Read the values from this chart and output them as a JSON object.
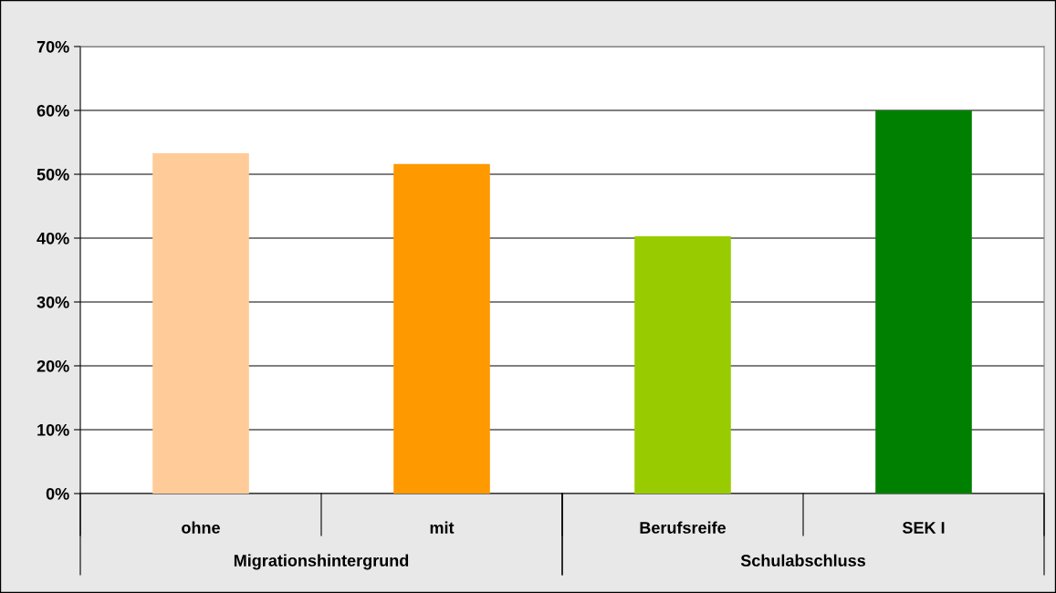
{
  "chart_data": {
    "type": "bar",
    "categories": [
      "ohne",
      "mit",
      "Berufsreife",
      "SEK I"
    ],
    "values": [
      53.3,
      51.6,
      40.3,
      60.0
    ],
    "colors": [
      "#ffcc99",
      "#ff9900",
      "#99cc00",
      "#008000"
    ],
    "ylim": [
      0,
      70
    ],
    "yticks": [
      {
        "value": 0,
        "label": "0%"
      },
      {
        "value": 10,
        "label": "10%"
      },
      {
        "value": 20,
        "label": "20%"
      },
      {
        "value": 30,
        "label": "30%"
      },
      {
        "value": 40,
        "label": "40%"
      },
      {
        "value": 50,
        "label": "50%"
      },
      {
        "value": 60,
        "label": "60%"
      },
      {
        "value": 70,
        "label": "70%"
      }
    ],
    "grid": "y",
    "annotations": [
      "Migrationshintergrund",
      "Schulabschluss"
    ]
  }
}
